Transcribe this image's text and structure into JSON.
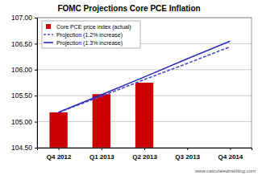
{
  "chart_data": {
    "type": "bar",
    "title": "FOMC Projections Core PCE Inflation",
    "categories": [
      "Q4 2012",
      "Q1 2013",
      "Q2 2013",
      "Q3 2013",
      "Q4 2014"
    ],
    "series": [
      {
        "name": "Core PCE price index (actual)",
        "type": "bar",
        "color": "#cc0000",
        "values": [
          105.18,
          105.53,
          105.75,
          null,
          null
        ]
      },
      {
        "name": "Projection (1.2% increase)",
        "type": "line",
        "color": "#4a4ad6",
        "line_style": "dashed",
        "values": [
          105.18,
          105.49,
          105.81,
          106.12,
          106.44
        ]
      },
      {
        "name": "Projection (1.3% increase)",
        "type": "line",
        "color": "#2b2bc0",
        "line_style": "solid",
        "values": [
          105.18,
          105.52,
          105.86,
          106.21,
          106.55
        ]
      }
    ],
    "ylim": [
      104.5,
      107
    ],
    "yticks": [
      {
        "value": 104.5,
        "label": "104.50"
      },
      {
        "value": 105,
        "label": "105.00"
      },
      {
        "value": 105.5,
        "label": "105.50"
      },
      {
        "value": 106,
        "label": "106.00"
      },
      {
        "value": 106.5,
        "label": "106.50"
      },
      {
        "value": 107,
        "label": "107.00"
      }
    ],
    "grid": true,
    "legend": "upper left",
    "annotations": [
      "www.calculatedriskblog.com"
    ]
  }
}
